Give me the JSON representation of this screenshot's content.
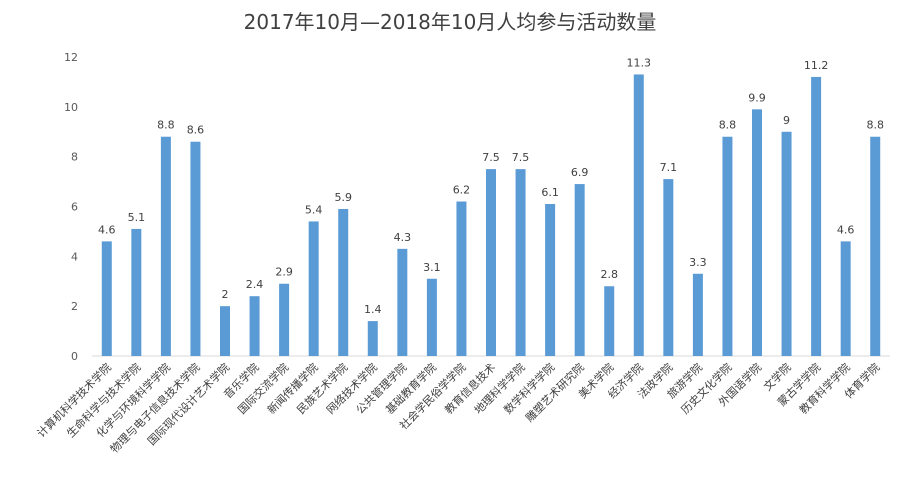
{
  "chart_data": {
    "type": "bar",
    "title": "2017年10月—2018年10月人均参与活动数量",
    "xlabel": "",
    "ylabel": "",
    "ylim": [
      0,
      12
    ],
    "yticks": [
      0,
      2,
      4,
      6,
      8,
      10,
      12
    ],
    "grid": false,
    "bar_color": "#5b9bd5",
    "categories": [
      "计算机科学技术学院",
      "生命科学与技术学院",
      "化学与环境科学学院",
      "物理与电子信息技术学院",
      "国际现代设计艺术学院",
      "音乐学院",
      "国际交流学院",
      "新闻传播学院",
      "民族艺术学院",
      "网络技术学院",
      "公共管理学院",
      "基础教育学院",
      "社会学民俗学学院",
      "教育信息技术",
      "地理科学学院",
      "数学科学学院",
      "雕塑艺术研究院",
      "美术学院",
      "经济学院",
      "法政学院",
      "旅游学院",
      "历史文化学院",
      "外国语学院",
      "文学院",
      "蒙古学学院",
      "教育科学学院",
      "体育学院"
    ],
    "values": [
      4.6,
      5.1,
      8.8,
      8.6,
      2,
      2.4,
      2.9,
      5.4,
      5.9,
      1.4,
      4.3,
      3.1,
      6.2,
      7.5,
      7.5,
      6.1,
      6.9,
      2.8,
      11.3,
      7.1,
      3.3,
      8.8,
      9.9,
      9,
      11.2,
      4.6,
      8.8
    ],
    "data_labels": [
      "4.6",
      "5.1",
      "8.8",
      "8.6",
      "2",
      "2.4",
      "2.9",
      "5.4",
      "5.9",
      "1.4",
      "4.3",
      "3.1",
      "6.2",
      "7.5",
      "7.5",
      "6.1",
      "6.9",
      "2.8",
      "11.3",
      "7.1",
      "3.3",
      "8.8",
      "9.9",
      "9",
      "11.2",
      "4.6",
      "8.8"
    ]
  }
}
